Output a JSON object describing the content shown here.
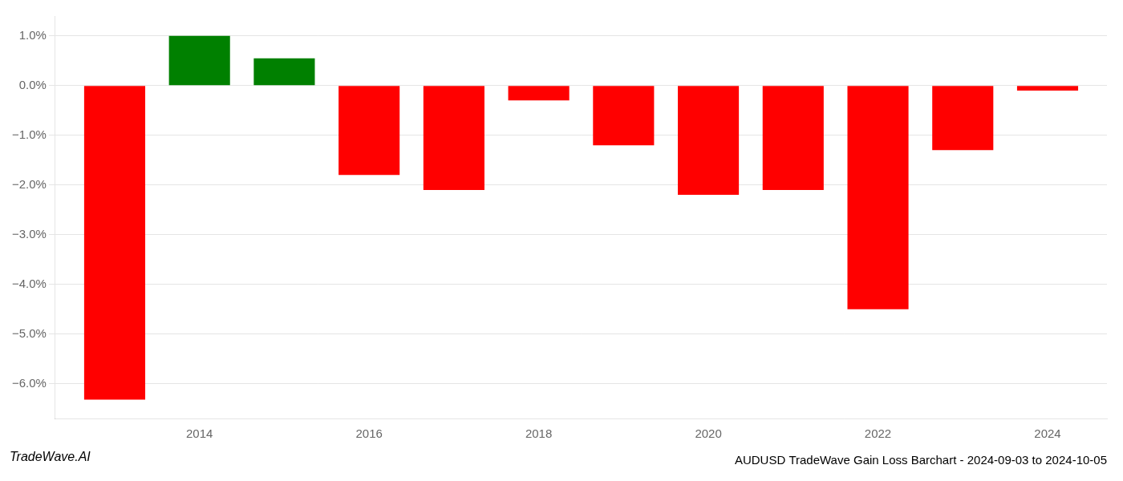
{
  "chart_data": {
    "type": "bar",
    "title": "AUDUSD TradeWave Gain Loss Barchart - 2024-09-03 to 2024-10-05",
    "annotations": [
      "TradeWave.AI"
    ],
    "x": [
      2013,
      2014,
      2015,
      2016,
      2017,
      2018,
      2019,
      2020,
      2021,
      2022,
      2023,
      2024
    ],
    "values": [
      -6.32,
      1.0,
      0.55,
      -1.8,
      -2.1,
      -0.3,
      -1.2,
      -2.2,
      -2.1,
      -4.5,
      -1.3,
      -0.1
    ],
    "colors": [
      "#ff0000",
      "#008000",
      "#008000",
      "#ff0000",
      "#ff0000",
      "#ff0000",
      "#ff0000",
      "#ff0000",
      "#ff0000",
      "#ff0000",
      "#ff0000",
      "#ff0000"
    ],
    "xlim": [
      2012.3,
      2024.7
    ],
    "xticks": [
      2014,
      2016,
      2018,
      2020,
      2022,
      2024
    ],
    "ylim": [
      -6.7,
      1.4
    ],
    "yticks": [
      {
        "value": 1.0,
        "label": "1.0%"
      },
      {
        "value": 0.0,
        "label": "0.0%"
      },
      {
        "value": -1.0,
        "label": "−1.0%"
      },
      {
        "value": -2.0,
        "label": "−2.0%"
      },
      {
        "value": -3.0,
        "label": "−3.0%"
      },
      {
        "value": -4.0,
        "label": "−4.0%"
      },
      {
        "value": -5.0,
        "label": "−5.0%"
      },
      {
        "value": -6.0,
        "label": "−6.0%"
      }
    ],
    "grid": true
  }
}
